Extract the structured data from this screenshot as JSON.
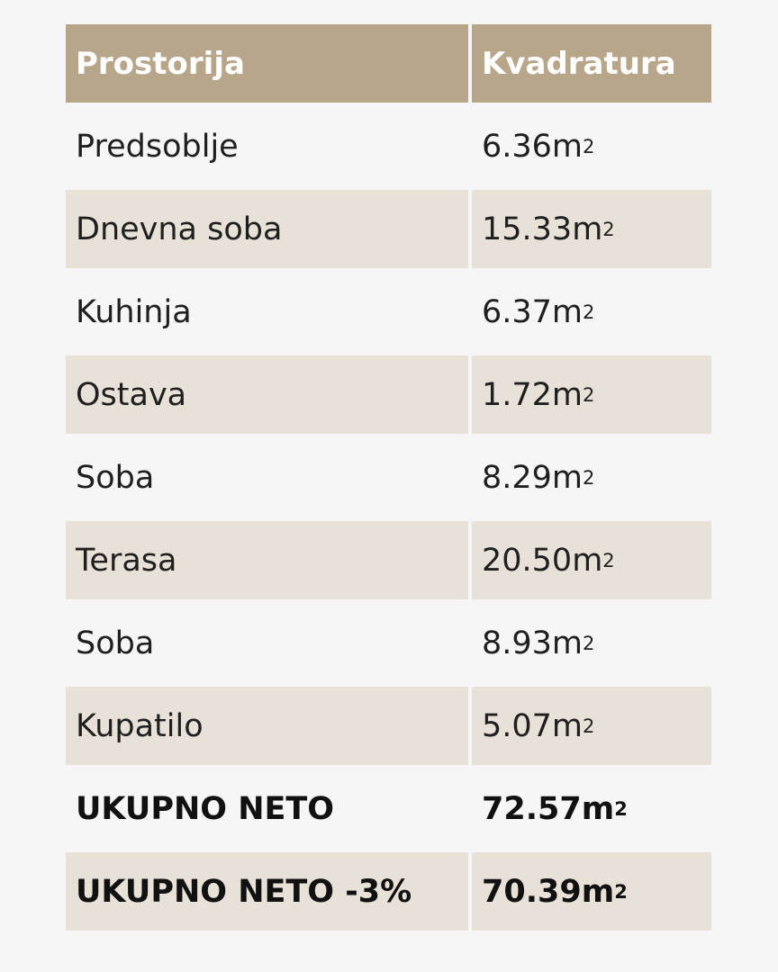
{
  "table": {
    "headers": [
      "Prostorija",
      "Kvadratura"
    ],
    "unit_suffix": "2",
    "rows": [
      {
        "room": "Predsoblje",
        "area": "6.36m"
      },
      {
        "room": "Dnevna soba",
        "area": "15.33m"
      },
      {
        "room": "Kuhinja",
        "area": "6.37m"
      },
      {
        "room": "Ostava",
        "area": "1.72m"
      },
      {
        "room": "Soba",
        "area": "8.29m"
      },
      {
        "room": "Terasa",
        "area": "20.50m"
      },
      {
        "room": "Soba",
        "area": "8.93m"
      },
      {
        "room": "Kupatilo",
        "area": "5.07m"
      },
      {
        "room": "UKUPNO NETO",
        "area": "72.57m"
      },
      {
        "room": "UKUPNO NETO -3%",
        "area": "70.39m"
      }
    ]
  },
  "colors": {
    "header_bg": "#b7a68a",
    "shaded_row_bg": "#e8e1d7",
    "page_bg": "#f7f6f6"
  }
}
